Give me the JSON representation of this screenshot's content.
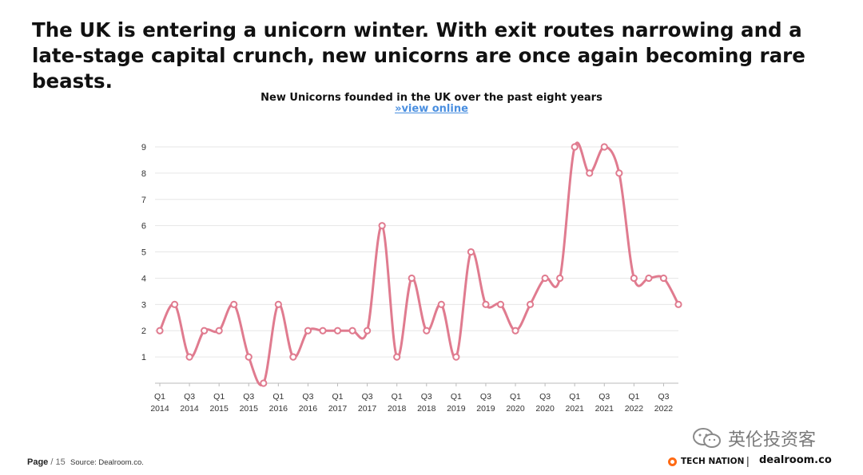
{
  "headline": "The UK is entering a unicorn winter. With exit routes narrowing and a late-stage capital crunch, new unicorns are once again becoming rare beasts.",
  "chart_data": {
    "type": "line",
    "title": "New Unicorns founded in the UK over the past eight years",
    "link_text": "»view online",
    "xlabel": "",
    "ylabel": "",
    "ylim": [
      0,
      9
    ],
    "yticks": [
      1,
      2,
      3,
      4,
      5,
      6,
      7,
      8,
      9
    ],
    "grid": true,
    "line_color": "#e07b8f",
    "x": [
      "Q1 2014",
      "Q2 2014",
      "Q3 2014",
      "Q4 2014",
      "Q1 2015",
      "Q2 2015",
      "Q3 2015",
      "Q4 2015",
      "Q1 2016",
      "Q2 2016",
      "Q3 2016",
      "Q4 2016",
      "Q1 2017",
      "Q2 2017",
      "Q3 2017",
      "Q4 2017",
      "Q1 2018",
      "Q2 2018",
      "Q3 2018",
      "Q4 2018",
      "Q1 2019",
      "Q2 2019",
      "Q3 2019",
      "Q4 2019",
      "Q1 2020",
      "Q2 2020",
      "Q3 2020",
      "Q4 2020",
      "Q1 2021",
      "Q2 2021",
      "Q3 2021",
      "Q4 2021",
      "Q1 2022",
      "Q2 2022",
      "Q3 2022",
      "Q4 2022"
    ],
    "values": [
      2,
      3,
      1,
      2,
      2,
      3,
      1,
      0,
      3,
      1,
      2,
      2,
      2,
      2,
      2,
      6,
      1,
      4,
      2,
      3,
      1,
      5,
      3,
      3,
      2,
      3,
      4,
      4,
      9,
      8,
      9,
      8,
      4,
      4,
      4,
      3
    ],
    "tick_labels": [
      {
        "q": "Q1",
        "y": "2014"
      },
      {
        "q": "Q3",
        "y": "2014"
      },
      {
        "q": "Q1",
        "y": "2015"
      },
      {
        "q": "Q3",
        "y": "2015"
      },
      {
        "q": "Q1",
        "y": "2016"
      },
      {
        "q": "Q3",
        "y": "2016"
      },
      {
        "q": "Q1",
        "y": "2017"
      },
      {
        "q": "Q3",
        "y": "2017"
      },
      {
        "q": "Q1",
        "y": "2018"
      },
      {
        "q": "Q3",
        "y": "2018"
      },
      {
        "q": "Q1",
        "y": "2019"
      },
      {
        "q": "Q3",
        "y": "2019"
      },
      {
        "q": "Q1",
        "y": "2020"
      },
      {
        "q": "Q3",
        "y": "2020"
      },
      {
        "q": "Q1",
        "y": "2021"
      },
      {
        "q": "Q3",
        "y": "2021"
      },
      {
        "q": "Q1",
        "y": "2022"
      },
      {
        "q": "Q3",
        "y": "2022"
      }
    ]
  },
  "footer": {
    "page_word": "Page",
    "page_sep": "/ 15",
    "source": "Source: Dealroom.co."
  },
  "watermark": "英伦投资客",
  "logos": {
    "tech_nation": "TECH NATION",
    "separator": "|",
    "dealroom": "dealroom.co"
  }
}
